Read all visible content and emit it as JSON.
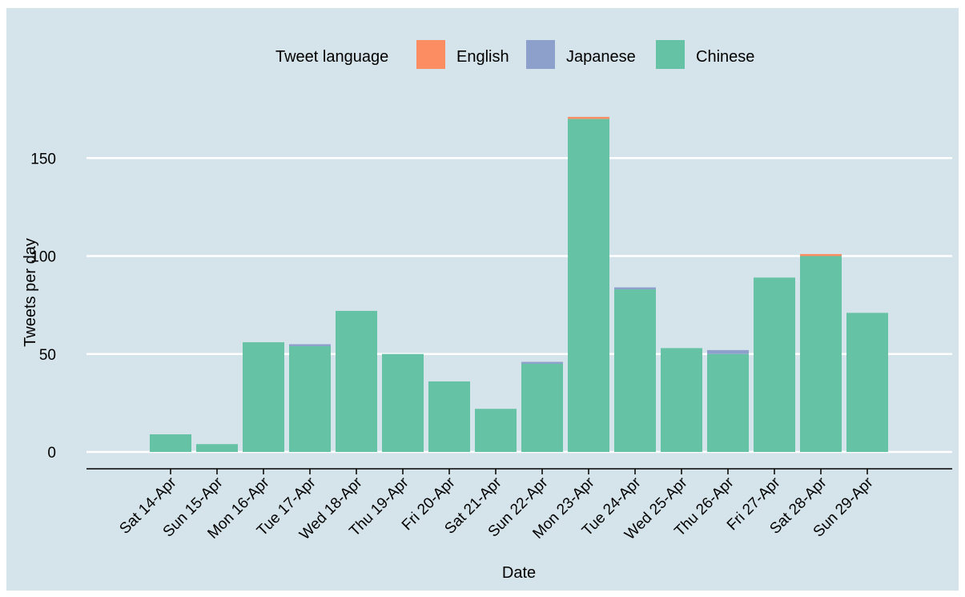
{
  "chart_data": {
    "type": "bar",
    "stacked": true,
    "title": "",
    "xlabel": "Date",
    "ylabel": "Tweets per day",
    "ylim": [
      0,
      175
    ],
    "yticks": [
      0,
      50,
      100,
      150
    ],
    "grid": true,
    "legend": {
      "title": "Tweet language",
      "position": "top-center"
    },
    "categories": [
      "Sat 14-Apr",
      "Sun 15-Apr",
      "Mon 16-Apr",
      "Tue 17-Apr",
      "Wed 18-Apr",
      "Thu 19-Apr",
      "Fri 20-Apr",
      "Sat 21-Apr",
      "Sun 22-Apr",
      "Mon 23-Apr",
      "Tue 24-Apr",
      "Wed 25-Apr",
      "Thu 26-Apr",
      "Fri 27-Apr",
      "Sat 28-Apr",
      "Sun 29-Apr"
    ],
    "series": [
      {
        "name": "Chinese",
        "color": "#66c2a5",
        "values": [
          9,
          4,
          56,
          54,
          72,
          50,
          36,
          22,
          45,
          170,
          83,
          53,
          50,
          89,
          100,
          71
        ]
      },
      {
        "name": "Japanese",
        "color": "#8da0cb",
        "values": [
          0,
          0,
          0,
          1,
          0,
          0,
          0,
          0,
          1,
          0,
          1,
          0,
          2,
          0,
          0,
          0
        ]
      },
      {
        "name": "English",
        "color": "#fc8d62",
        "values": [
          0,
          0,
          0,
          0,
          0,
          0,
          0,
          0,
          0,
          1,
          0,
          0,
          0,
          0,
          1,
          0
        ]
      }
    ]
  }
}
